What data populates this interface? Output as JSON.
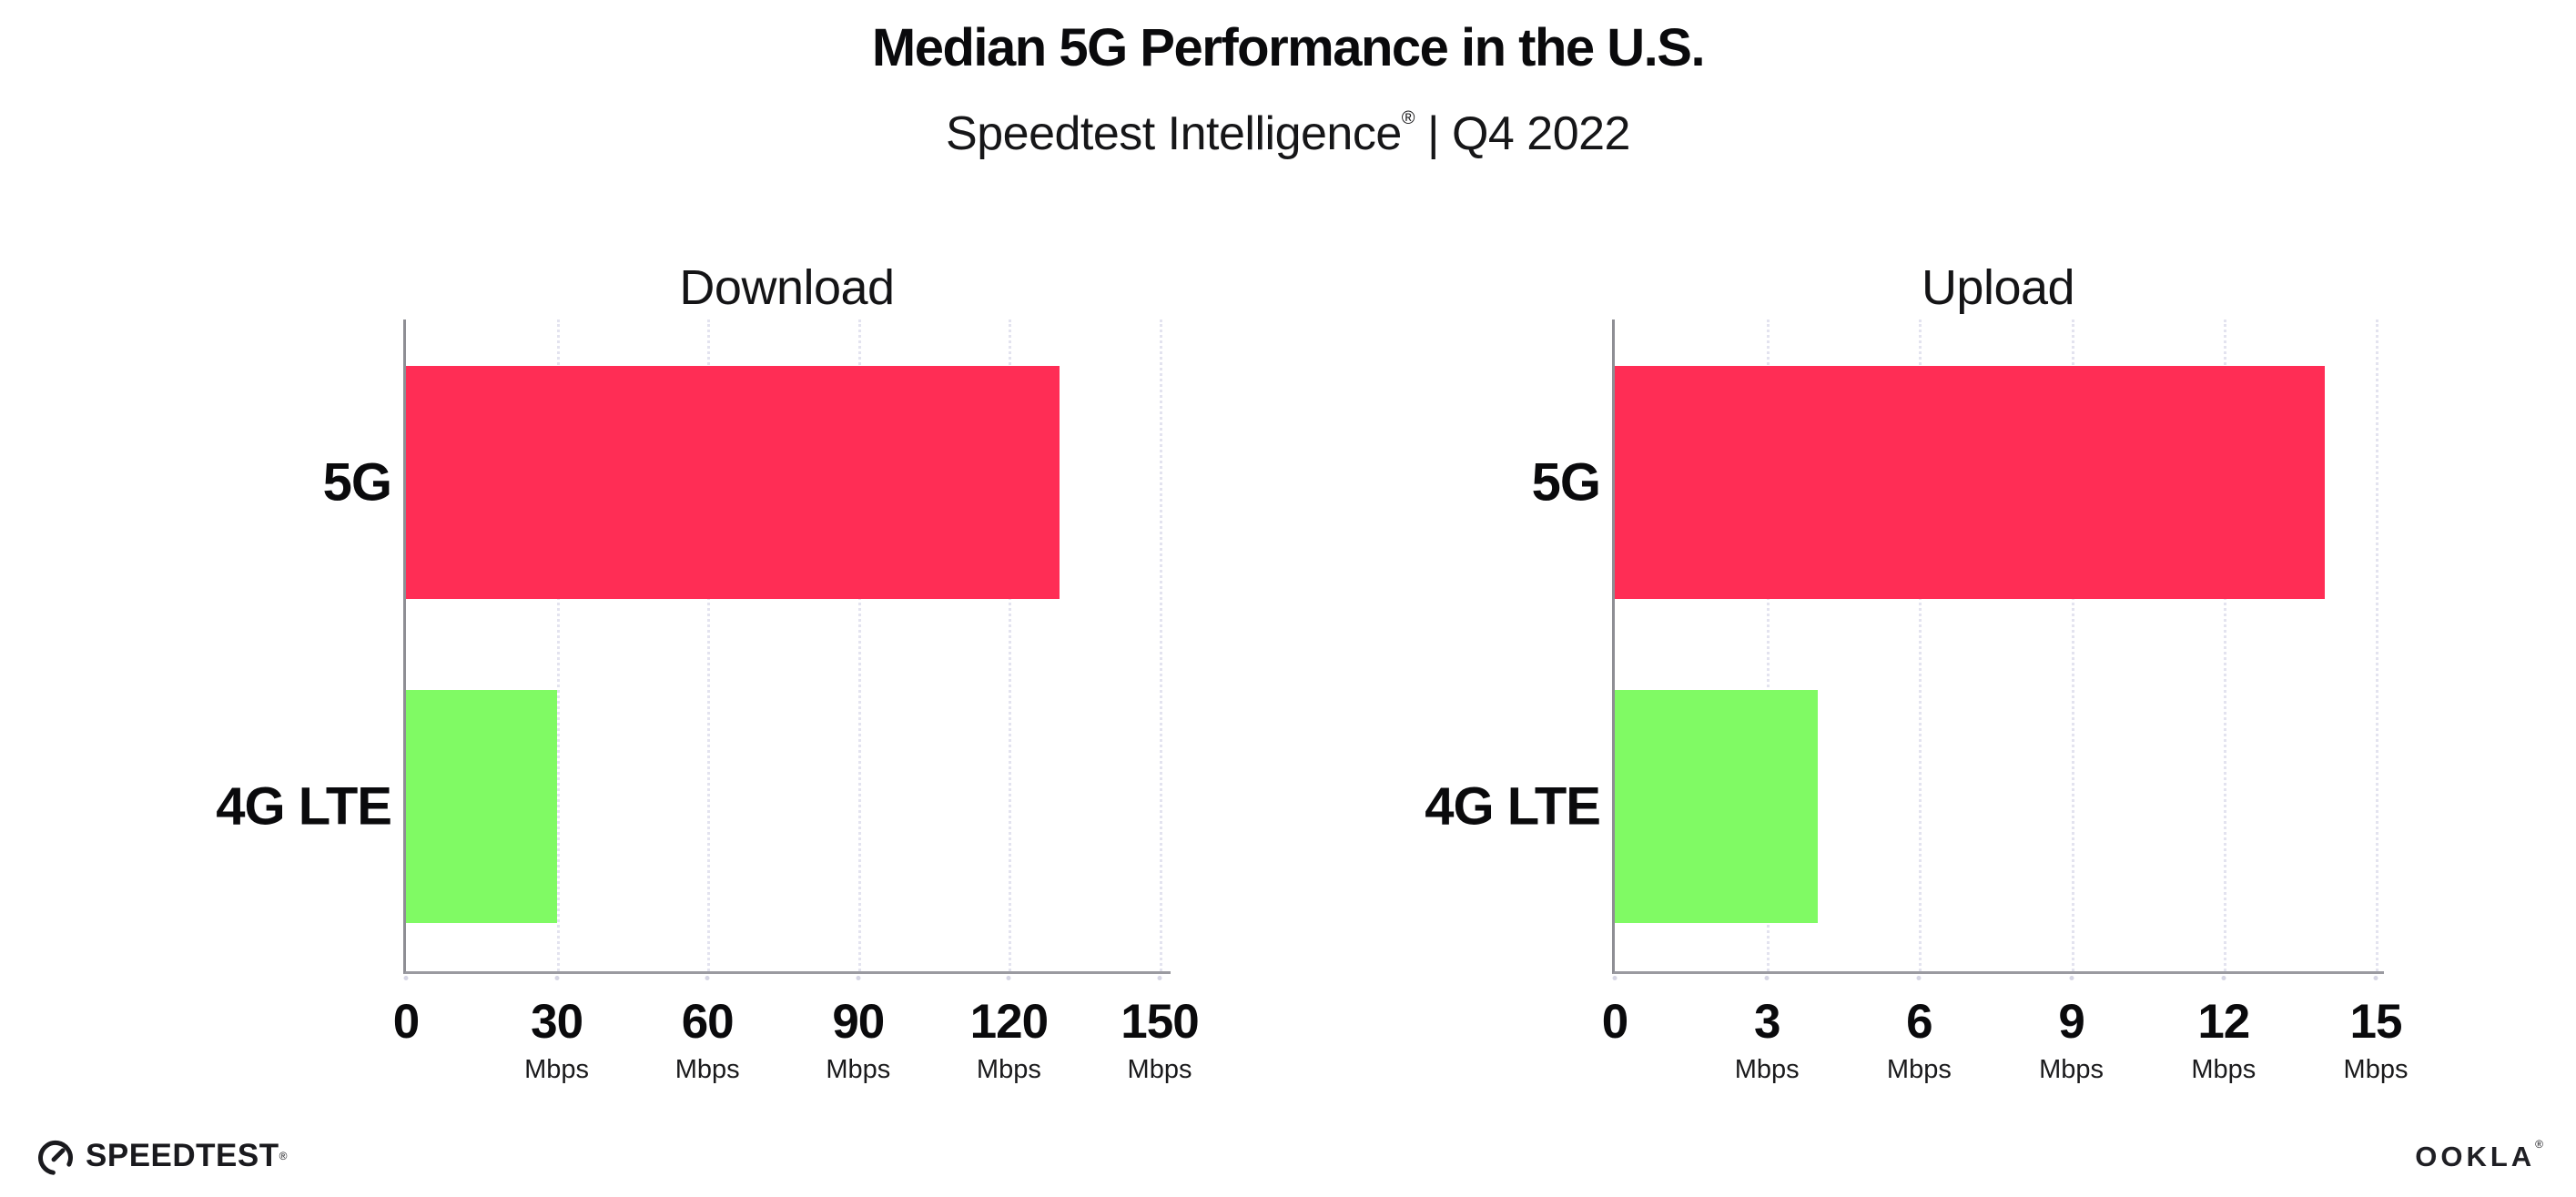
{
  "header": {
    "title": "Median 5G Performance in the U.S.",
    "subtitle_brand": "Speedtest Intelligence",
    "subtitle_mark": "®",
    "subtitle_rest": "| Q4 2022"
  },
  "chart_data": [
    {
      "type": "bar",
      "orientation": "horizontal",
      "title": "Download",
      "categories": [
        "5G",
        "4G LTE"
      ],
      "values": [
        130,
        30
      ],
      "unit": "Mbps",
      "xlabel": "",
      "ylabel": "",
      "xlim": [
        0,
        150
      ],
      "xticks": [
        0,
        30,
        60,
        90,
        120,
        150
      ],
      "bar_colors": [
        "#FF2D55",
        "#80FA64"
      ],
      "grid": "dotted-vertical",
      "legend": "none"
    },
    {
      "type": "bar",
      "orientation": "horizontal",
      "title": "Upload",
      "categories": [
        "5G",
        "4G LTE"
      ],
      "values": [
        14,
        4
      ],
      "unit": "Mbps",
      "xlabel": "",
      "ylabel": "",
      "xlim": [
        0,
        15
      ],
      "xticks": [
        0,
        3,
        6,
        9,
        12,
        15
      ],
      "bar_colors": [
        "#FF2D55",
        "#80FA64"
      ],
      "grid": "dotted-vertical",
      "legend": "none"
    }
  ],
  "colors": {
    "bar_5g": "#FF2D55",
    "bar_4g_lte": "#80FA64",
    "gridline": "#E3E3EF",
    "axis": "#8E8E94"
  },
  "footer": {
    "speedtest_label": "SPEEDTEST",
    "speedtest_mark": "®",
    "ookla_label": "OOKLA",
    "ookla_mark": "®"
  }
}
